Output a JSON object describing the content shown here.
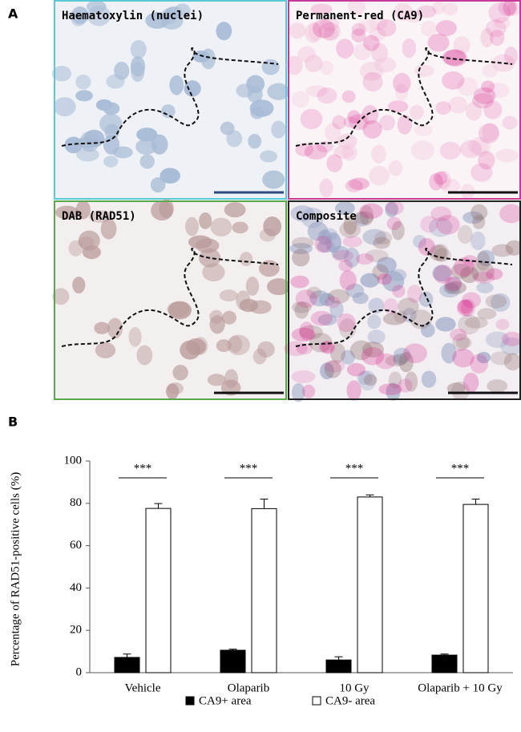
{
  "labels": [
    "A",
    "B"
  ],
  "panels": [
    {
      "label": "Haematoxylin (nuclei)"
    },
    {
      "label": "Permanent-red (CA9)"
    },
    {
      "label": "DAB (RAD51)"
    },
    {
      "label": "Composite"
    }
  ],
  "chart_data": {
    "type": "bar",
    "y_label": "Percentage of RAD51-positive cells (%)",
    "categories": [
      "Vehicle",
      "Olaparib",
      "10 Gy",
      "Olaparib + 10 Gy"
    ],
    "annotations": [
      "***",
      "***",
      "***",
      "***"
    ],
    "series": [
      {
        "name": "CA9+ area",
        "color": "#000000",
        "values": [
          7.2,
          10.6,
          6,
          8.3
        ],
        "errors": [
          1.6,
          0.5,
          1.5,
          0.5
        ]
      },
      {
        "name": "CA9- area",
        "color": "#ffffff",
        "values": [
          77.6,
          77.5,
          83,
          79.5
        ],
        "errors": [
          2.3,
          4.5,
          1,
          2.5
        ]
      }
    ],
    "ylim": [
      0,
      100
    ],
    "yticks": [
      0,
      20,
      40,
      60,
      80,
      100
    ],
    "grid": false
  }
}
